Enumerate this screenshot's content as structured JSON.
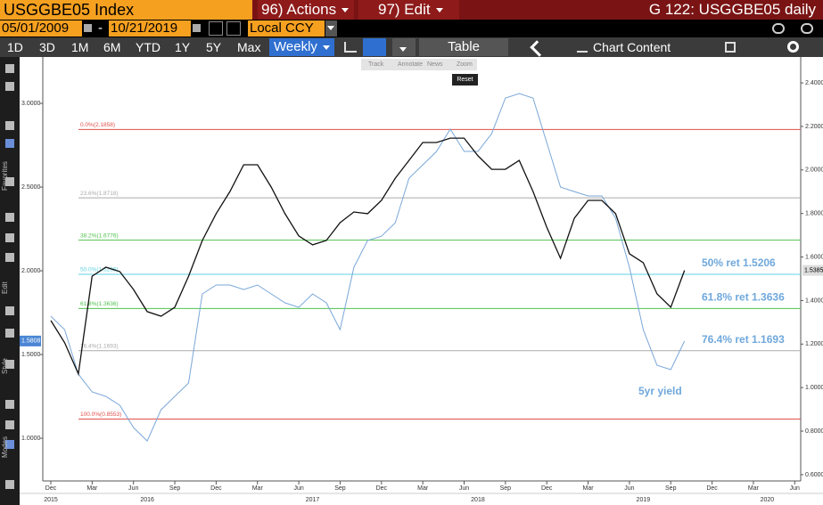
{
  "header": {
    "ticker": "USGGBE05 Index",
    "actions": "96) Actions",
    "edit": "97) Edit",
    "page_title": "G 122: USGGBE05 daily"
  },
  "date_bar": {
    "start": "05/01/2009",
    "dash": "-",
    "end": "10/21/2019",
    "currency": "Local CCY"
  },
  "toolbar": {
    "periods": [
      "1D",
      "3D",
      "1M",
      "6M",
      "YTD",
      "1Y",
      "5Y",
      "Max"
    ],
    "frequency": "Weekly",
    "table": "Table",
    "chart_content": "Chart Content"
  },
  "chart_tools": [
    "Track",
    "Annotate",
    "News",
    "Zoom"
  ],
  "reset": "Reset",
  "side_labels": [
    "Favorites",
    "Edit",
    "Style",
    "Modes"
  ],
  "chart_data": {
    "type": "line",
    "x": [
      "2015-12",
      "2016-01",
      "2016-02",
      "2016-03",
      "2016-04",
      "2016-05",
      "2016-06",
      "2016-07",
      "2016-08",
      "2016-09",
      "2016-10",
      "2016-11",
      "2016-12",
      "2017-01",
      "2017-02",
      "2017-03",
      "2017-04",
      "2017-05",
      "2017-06",
      "2017-07",
      "2017-08",
      "2017-09",
      "2017-10",
      "2017-11",
      "2017-12",
      "2018-01",
      "2018-02",
      "2018-03",
      "2018-04",
      "2018-05",
      "2018-06",
      "2018-07",
      "2018-08",
      "2018-09",
      "2018-10",
      "2018-11",
      "2018-12",
      "2019-01",
      "2019-02",
      "2019-03",
      "2019-04",
      "2019-05",
      "2019-06",
      "2019-07",
      "2019-08",
      "2019-09",
      "2019-10"
    ],
    "series": [
      {
        "name": "5yr yield",
        "color": "#7aa7d8",
        "values": [
          1.729,
          1.649,
          1.383,
          1.277,
          1.25,
          1.197,
          1.064,
          0.984,
          1.17,
          1.25,
          1.33,
          1.862,
          1.915,
          1.915,
          1.888,
          1.915,
          1.862,
          1.809,
          1.782,
          1.862,
          1.809,
          1.649,
          2.021,
          2.181,
          2.207,
          2.287,
          2.553,
          2.633,
          2.713,
          2.846,
          2.713,
          2.713,
          2.819,
          3.032,
          3.059,
          3.032,
          2.766,
          2.5,
          2.473,
          2.447,
          2.447,
          2.314,
          2.021,
          1.649,
          1.436,
          1.41,
          1.5808
        ]
      },
      {
        "color": "#111111",
        "axis": "y2",
        "values": [
          1.308,
          1.206,
          1.063,
          1.512,
          1.553,
          1.533,
          1.451,
          1.349,
          1.328,
          1.369,
          1.512,
          1.676,
          1.799,
          1.901,
          2.024,
          2.024,
          1.921,
          1.799,
          1.697,
          1.656,
          1.676,
          1.758,
          1.807,
          1.799,
          1.86,
          1.962,
          2.044,
          2.126,
          2.126,
          2.146,
          2.146,
          2.065,
          2.003,
          2.003,
          2.044,
          1.901,
          1.737,
          1.594,
          1.778,
          1.86,
          1.86,
          1.799,
          1.615,
          1.574,
          1.431,
          1.369,
          1.5385
        ]
      }
    ],
    "annotation": "5yr yield",
    "fib_levels": [
      {
        "label": "0.0%(2.1858)",
        "value": 2.1858,
        "color": "#e0504a"
      },
      {
        "label": "23.6%(1.8718)",
        "value": 1.8718,
        "color": "#aaaaaa"
      },
      {
        "label": "38.2%(1.6776)",
        "value": 1.6776,
        "color": "#4ec24e"
      },
      {
        "label": "50.0%(1.5206)",
        "value": 1.5206,
        "color": "#5fd3e0",
        "callout": "50% ret 1.5206"
      },
      {
        "label": "61.8%(1.3636)",
        "value": 1.3636,
        "color": "#4ec24e",
        "callout": "61.8% ret 1.3636"
      },
      {
        "label": "76.4%(1.1693)",
        "value": 1.1693,
        "color": "#aaaaaa",
        "callout": "76.4% ret 1.1693"
      },
      {
        "label": "100.0%(0.8553)",
        "value": 0.8553,
        "color": "#e0504a"
      }
    ],
    "ylim": [
      0.745,
      3.277
    ],
    "yticks": [
      {
        "value": 1,
        "label": "1.0000"
      },
      {
        "value": 1.5,
        "label": "1.5000"
      },
      {
        "value": 2,
        "label": "2.0000"
      },
      {
        "value": 2.5,
        "label": "2.5000"
      },
      {
        "value": 3,
        "label": "3.0000"
      }
    ],
    "y2lim": [
      0.571,
      2.519
    ],
    "y2ticks": [
      {
        "value": 0.6,
        "label": "0.6000"
      },
      {
        "value": 0.8,
        "label": "0.8000"
      },
      {
        "value": 1,
        "label": "1.0000"
      },
      {
        "value": 1.2,
        "label": "1.2000"
      },
      {
        "value": 1.4,
        "label": "1.4000"
      },
      {
        "value": 1.6,
        "label": "1.6000"
      },
      {
        "value": 1.8,
        "label": "1.8000"
      },
      {
        "value": 2,
        "label": "2.0000"
      },
      {
        "value": 2.2,
        "label": "2.2000"
      },
      {
        "value": 2.4,
        "label": "2.4000"
      }
    ],
    "xticks": [
      {
        "value": "2015-12",
        "label": "Dec"
      },
      {
        "value": "2016-03",
        "label": "Mar"
      },
      {
        "value": "2016-06",
        "label": "Jun"
      },
      {
        "value": "2016-09",
        "label": "Sep"
      },
      {
        "value": "2016-12",
        "label": "Dec"
      },
      {
        "value": "2017-03",
        "label": "Mar"
      },
      {
        "value": "2017-06",
        "label": "Jun"
      },
      {
        "value": "2017-09",
        "label": "Sep"
      },
      {
        "value": "2017-12",
        "label": "Dec"
      },
      {
        "value": "2018-03",
        "label": "Mar"
      },
      {
        "value": "2018-06",
        "label": "Jun"
      },
      {
        "value": "2018-09",
        "label": "Sep"
      },
      {
        "value": "2018-12",
        "label": "Dec"
      },
      {
        "value": "2019-03",
        "label": "Mar"
      },
      {
        "value": "2019-06",
        "label": "Jun"
      },
      {
        "value": "2019-09",
        "label": "Sep"
      },
      {
        "value": "2019-12",
        "label": "Dec"
      },
      {
        "value": "2020-03",
        "label": "Mar"
      },
      {
        "value": "2020-06",
        "label": "Jun"
      }
    ],
    "xyears": [
      {
        "value": "2015-12",
        "label": "2015"
      },
      {
        "value": "2016-07",
        "label": "2016"
      },
      {
        "value": "2017-07",
        "label": "2017"
      },
      {
        "value": "2018-07",
        "label": "2018"
      },
      {
        "value": "2019-07",
        "label": "2019"
      },
      {
        "value": "2020-04",
        "label": "2020"
      }
    ],
    "grid": false
  }
}
